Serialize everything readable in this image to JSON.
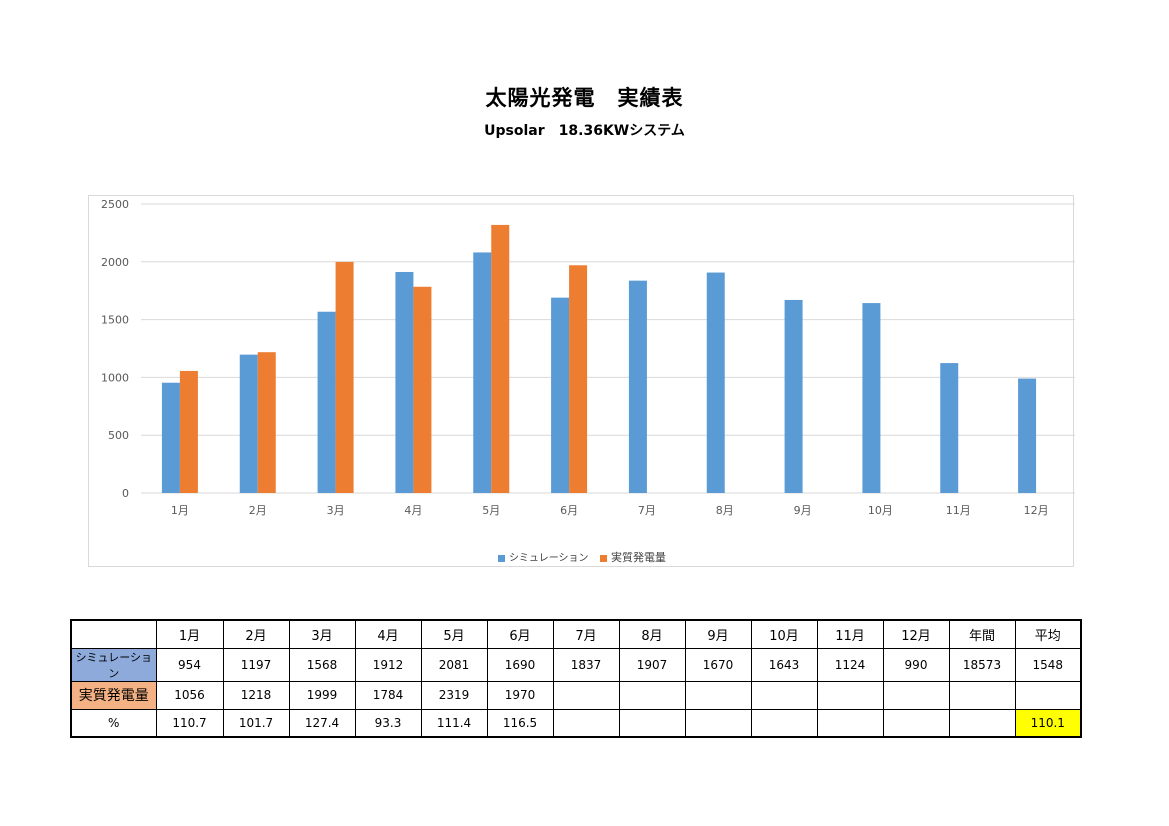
{
  "title": "太陽光発電　実績表",
  "subtitle": "Upsolar　18.36KWシステム",
  "colors": {
    "simulation": "#5b9bd5",
    "actual": "#ed7d31",
    "grid": "#d9d9d9",
    "highlight": "#ffff00"
  },
  "chart_data": {
    "type": "bar",
    "categories": [
      "1月",
      "2月",
      "3月",
      "4月",
      "5月",
      "6月",
      "7月",
      "8月",
      "9月",
      "10月",
      "11月",
      "12月"
    ],
    "series": [
      {
        "name": "シミュレーション",
        "values": [
          954,
          1197,
          1568,
          1912,
          2081,
          1690,
          1837,
          1907,
          1670,
          1643,
          1124,
          990
        ]
      },
      {
        "name": "実質発電量",
        "values": [
          1056,
          1218,
          1999,
          1784,
          2319,
          1970,
          null,
          null,
          null,
          null,
          null,
          null
        ]
      }
    ],
    "ylim": [
      0,
      2500
    ],
    "yticks": [
      0,
      500,
      1000,
      1500,
      2000,
      2500
    ],
    "grid": true,
    "legend_position": "bottom"
  },
  "table": {
    "headers": [
      "",
      "1月",
      "2月",
      "3月",
      "4月",
      "5月",
      "6月",
      "7月",
      "8月",
      "9月",
      "10月",
      "11月",
      "12月",
      "年間",
      "平均"
    ],
    "rows": [
      {
        "label": "シミュレーション",
        "cells": [
          "954",
          "1197",
          "1568",
          "1912",
          "2081",
          "1690",
          "1837",
          "1907",
          "1670",
          "1643",
          "1124",
          "990",
          "18573",
          "1548"
        ]
      },
      {
        "label": "実質発電量",
        "cells": [
          "1056",
          "1218",
          "1999",
          "1784",
          "2319",
          "1970",
          "",
          "",
          "",
          "",
          "",
          "",
          "",
          ""
        ]
      },
      {
        "label": "%",
        "cells": [
          "110.7",
          "101.7",
          "127.4",
          "93.3",
          "111.4",
          "116.5",
          "",
          "",
          "",
          "",
          "",
          "",
          "",
          "110.1"
        ]
      }
    ]
  }
}
